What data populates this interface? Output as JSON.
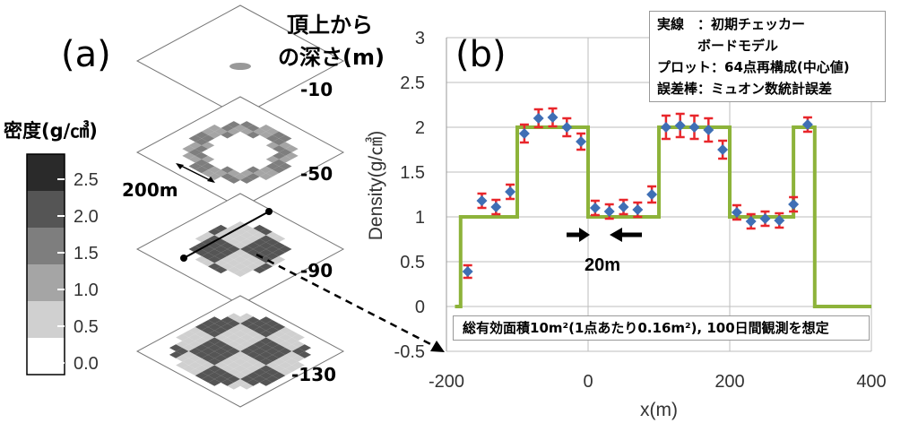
{
  "panel_a": {
    "label": "(a)",
    "depth_header": [
      "頂上から",
      "の深さ(m)"
    ],
    "depths": [
      "-10",
      "-50",
      "-90",
      "-130"
    ],
    "scale_label": "200m",
    "colorbar": {
      "title": "密度(g/㎤)",
      "ticks": [
        "2.5",
        "2.0",
        "1.5",
        "1.0",
        "0.5",
        "0.0"
      ],
      "colors": [
        "#2a2a2a",
        "#555555",
        "#7e7e7e",
        "#a5a5a5",
        "#d0d0d0",
        "#ffffff"
      ]
    }
  },
  "panel_b": {
    "label": "(b)",
    "legend": [
      "実線　：初期チェッカー",
      "　　　ボードモデル",
      "プロット：64点再構成(中心値)",
      "誤差棒：ミュオン数統計誤差"
    ],
    "note": "総有効面積10m²(1点あたり0.16m²), 100日間観測を想定",
    "width_label": "20m"
  },
  "chart_data": {
    "type": "scatter",
    "xlabel": "x(m)",
    "ylabel": "Density(g/㎤)",
    "xlim": [
      -200,
      400
    ],
    "ylim": [
      -0.5,
      3
    ],
    "xticks": [
      -200,
      0,
      200,
      400
    ],
    "yticks": [
      -0.5,
      0,
      0.5,
      1,
      1.5,
      2,
      2.5,
      3
    ],
    "grid": true,
    "model_line_color": "#8db33a",
    "point_color": "#3f6fb5",
    "error_color": "#e8262b",
    "model_line": {
      "x": [
        -250,
        -180,
        -180,
        -100,
        -100,
        0,
        0,
        100,
        100,
        200,
        200,
        290,
        290,
        320,
        320,
        400
      ],
      "y": [
        0,
        0,
        1,
        1,
        2,
        2,
        1,
        1,
        2,
        2,
        1,
        1,
        2,
        2,
        0,
        0
      ]
    },
    "points": {
      "x": [
        -170,
        -150,
        -130,
        -110,
        -90,
        -70,
        -50,
        -30,
        -10,
        10,
        30,
        50,
        70,
        90,
        110,
        130,
        150,
        170,
        190,
        210,
        230,
        250,
        270,
        290,
        310
      ],
      "y": [
        0.39,
        1.18,
        1.11,
        1.28,
        1.93,
        2.1,
        2.11,
        2.0,
        1.84,
        1.1,
        1.06,
        1.11,
        1.08,
        1.25,
        2.0,
        2.02,
        2.0,
        1.97,
        1.75,
        1.05,
        0.95,
        0.98,
        0.96,
        1.14,
        2.03
      ],
      "err": [
        0.07,
        0.08,
        0.08,
        0.08,
        0.1,
        0.1,
        0.1,
        0.1,
        0.09,
        0.08,
        0.08,
        0.08,
        0.08,
        0.09,
        0.13,
        0.13,
        0.13,
        0.13,
        0.1,
        0.08,
        0.08,
        0.08,
        0.08,
        0.08,
        0.08
      ]
    }
  }
}
